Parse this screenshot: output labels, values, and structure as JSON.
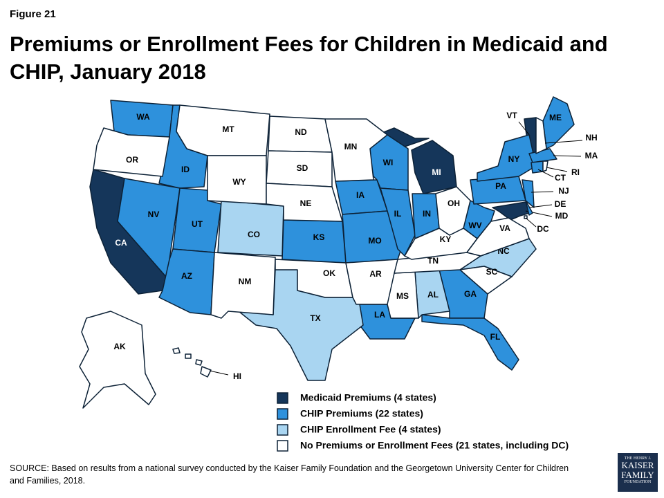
{
  "figure_label": "Figure 21",
  "title": "Premiums or Enrollment Fees for Children in Medicaid and CHIP, January 2018",
  "legend": [
    {
      "label": "Medicaid Premiums (4 states)",
      "color": "#15365a",
      "states": [
        "CA",
        "MI",
        "VT",
        "MD"
      ]
    },
    {
      "label": "CHIP Premiums (22 states)",
      "color": "#2e91dc",
      "states": [
        "WA",
        "ID",
        "NV",
        "UT",
        "AZ",
        "KS",
        "IA",
        "MO",
        "WI",
        "IL",
        "IN",
        "LA",
        "GA",
        "FL",
        "WV",
        "PA",
        "NY",
        "ME",
        "MA",
        "CT",
        "NJ",
        "DE"
      ]
    },
    {
      "label": "CHIP Enrollment Fee (4 states)",
      "color": "#a9d5f1",
      "states": [
        "CO",
        "TX",
        "AL",
        "NC"
      ]
    },
    {
      "label": "No Premiums or Enrollment Fees (21 states, including DC)",
      "color": "#ffffff",
      "states": [
        "OR",
        "MT",
        "WY",
        "ND",
        "SD",
        "NE",
        "NM",
        "OK",
        "MN",
        "AR",
        "MS",
        "TN",
        "KY",
        "OH",
        "VA",
        "SC",
        "NH",
        "RI",
        "AK",
        "HI",
        "DC"
      ]
    }
  ],
  "source": "SOURCE: Based on results from a national survey conducted by the Kaiser Family Foundation and the Georgetown University Center for Children and Families, 2018.",
  "logo": [
    "THE HENRY J.",
    "KAISER",
    "FAMILY",
    "FOUNDATION"
  ]
}
